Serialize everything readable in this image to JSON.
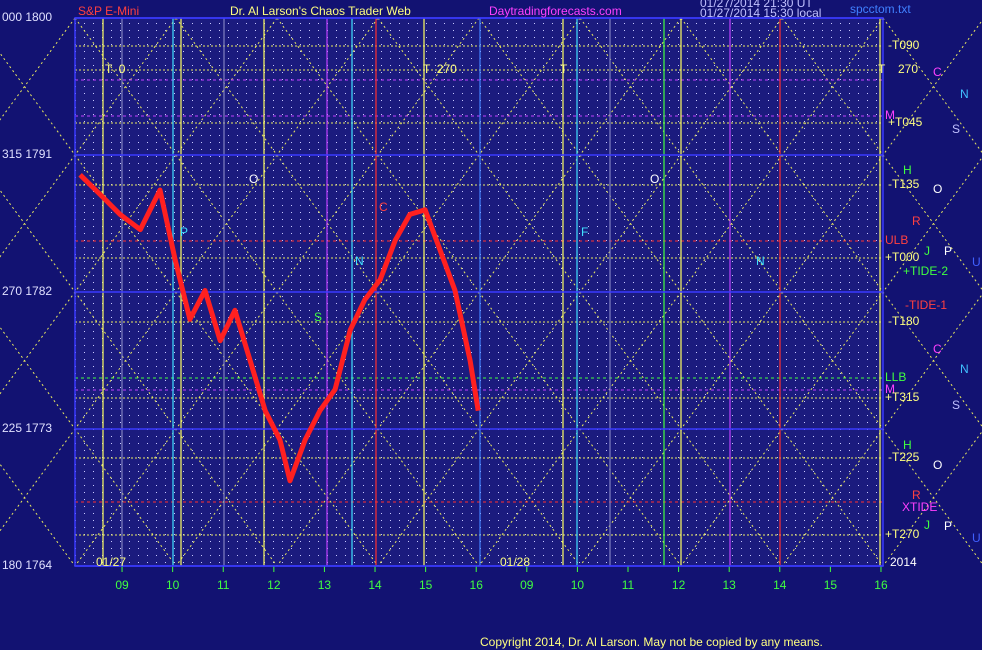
{
  "chart_data": {
    "type": "line",
    "title": "S&P E-Mini",
    "subtitle": "Dr. Al Larson's Chaos Trader Web",
    "annotations": [
      "Daytradingforecasts.com",
      "01/27/2014 21:30 UT",
      "01/27/2014 15:30 local",
      "spcctom.txt",
      "T  0",
      "T  270",
      "T",
      "T",
      "-T090",
      "270",
      "C",
      "N",
      "M",
      "+T045",
      "S",
      "H",
      "-T135",
      "O",
      "R",
      "ULB",
      "J",
      "P",
      "+T000",
      "U",
      "+TIDE-2",
      "-TIDE-1",
      "-T180",
      "C",
      "N",
      "LLB",
      "M",
      "+T315",
      "S",
      "H",
      "-T225",
      "O",
      "R",
      "XTIDE",
      "J",
      "P",
      "+T270",
      "U",
      "2014",
      "01/27",
      "01/28",
      "O",
      "P",
      "C",
      "N",
      "S",
      "F",
      "O",
      "N",
      "Copyright 2014, Dr. Al Larson. May not be copied by any means."
    ],
    "x": [
      -0.83,
      -0.43,
      -0.04,
      0.36,
      0.75,
      1.05,
      1.34,
      1.64,
      1.94,
      2.23,
      2.53,
      2.83,
      3.12,
      3.32,
      3.62,
      3.91,
      4.21,
      4.51,
      4.8,
      5.1,
      5.4,
      5.69,
      5.99,
      6.28,
      6.58,
      6.88,
      7.04
    ],
    "values": [
      1789.7,
      1788.4,
      1787.1,
      1786.1,
      1788.7,
      1784.1,
      1780.2,
      1782.1,
      1778.8,
      1780.8,
      1777.5,
      1774.2,
      1772.3,
      1769.6,
      1772.3,
      1774.2,
      1775.6,
      1779.5,
      1781.5,
      1782.8,
      1785.4,
      1787.1,
      1787.4,
      1784.8,
      1782.1,
      1777.5,
      1774.2
    ],
    "color": "#ff2020",
    "xlim": [
      -0.93,
      15.04
    ],
    "xticks": [
      {
        "value": 0,
        "label": "09"
      },
      {
        "value": 1,
        "label": "10"
      },
      {
        "value": 2,
        "label": "11"
      },
      {
        "value": 3,
        "label": "12"
      },
      {
        "value": 4,
        "label": "13"
      },
      {
        "value": 5,
        "label": "14"
      },
      {
        "value": 6,
        "label": "15"
      },
      {
        "value": 7,
        "label": "16"
      },
      {
        "value": 8,
        "label": "09"
      },
      {
        "value": 9,
        "label": "10"
      },
      {
        "value": 10,
        "label": "11"
      },
      {
        "value": 11,
        "label": "12"
      },
      {
        "value": 12,
        "label": "13"
      },
      {
        "value": 13,
        "label": "14"
      },
      {
        "value": 14,
        "label": "15"
      },
      {
        "value": 15,
        "label": "16"
      }
    ],
    "ylim": [
      1764,
      1800
    ],
    "yticks": [
      {
        "value": 1800,
        "label": "000 1800"
      },
      {
        "value": 1791,
        "label": "315 1791"
      },
      {
        "value": 1782,
        "label": "270 1782"
      },
      {
        "value": 1773,
        "label": "225 1773"
      },
      {
        "value": 1764,
        "label": "180 1764"
      }
    ],
    "grid": true
  }
}
